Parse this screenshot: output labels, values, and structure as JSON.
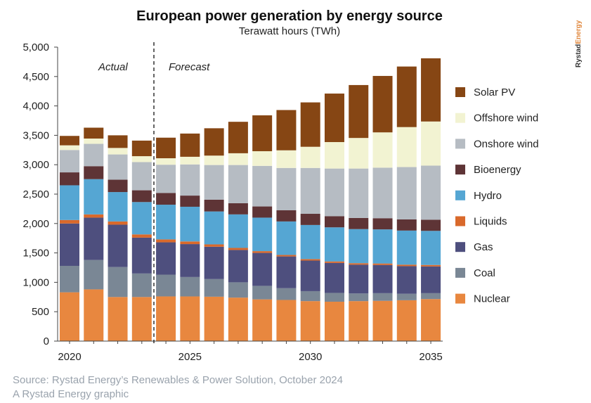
{
  "chart_data": {
    "type": "bar",
    "stacked": true,
    "title": "European power generation by energy source",
    "subtitle": "Terawatt hours (TWh)",
    "ylim": [
      0,
      5000
    ],
    "yticks": [
      0,
      500,
      1000,
      1500,
      2000,
      2500,
      3000,
      3500,
      4000,
      4500,
      5000
    ],
    "ytick_labels": [
      "0",
      "500",
      "1,000",
      "1,500",
      "2,000",
      "2,500",
      "3,000",
      "3,500",
      "4,000",
      "4,500",
      "5,000"
    ],
    "x": [
      2020,
      2021,
      2022,
      2023,
      2024,
      2025,
      2026,
      2027,
      2028,
      2029,
      2030,
      2031,
      2032,
      2033,
      2034,
      2035
    ],
    "xtick_values": [
      2020,
      2025,
      2030,
      2035
    ],
    "xtick_labels": [
      "2020",
      "2025",
      "2030",
      "2035"
    ],
    "period_split": 2023.5,
    "period_labels": {
      "actual": "Actual",
      "forecast": "Forecast"
    },
    "grid": false,
    "legend_position": "right",
    "series": [
      {
        "name": "Nuclear",
        "color": "#e8873f",
        "values": [
          830,
          880,
          750,
          750,
          760,
          760,
          755,
          740,
          710,
          700,
          680,
          670,
          680,
          685,
          695,
          715
        ]
      },
      {
        "name": "Coal",
        "color": "#7a8795",
        "values": [
          450,
          500,
          510,
          400,
          370,
          330,
          300,
          260,
          230,
          200,
          170,
          150,
          130,
          130,
          110,
          100
        ]
      },
      {
        "name": "Gas",
        "color": "#4e4f7e",
        "values": [
          720,
          720,
          720,
          610,
          550,
          560,
          550,
          550,
          560,
          540,
          520,
          510,
          490,
          480,
          470,
          455
        ]
      },
      {
        "name": "Liquids",
        "color": "#d9692b",
        "values": [
          60,
          55,
          55,
          55,
          50,
          45,
          40,
          35,
          30,
          25,
          25,
          25,
          25,
          25,
          25,
          25
        ]
      },
      {
        "name": "Hydro",
        "color": "#55a6d3",
        "values": [
          590,
          600,
          500,
          550,
          590,
          590,
          560,
          570,
          570,
          570,
          580,
          580,
          580,
          580,
          580,
          580
        ]
      },
      {
        "name": "Bioenergy",
        "color": "#5e3436",
        "values": [
          220,
          220,
          210,
          200,
          200,
          190,
          200,
          190,
          190,
          190,
          190,
          190,
          190,
          190,
          190,
          190
        ]
      },
      {
        "name": "Onshore wind",
        "color": "#b6bcc3",
        "values": [
          380,
          380,
          430,
          480,
          480,
          530,
          590,
          650,
          690,
          720,
          780,
          810,
          840,
          860,
          890,
          920
        ]
      },
      {
        "name": "Offshore wind",
        "color": "#f2f3d2",
        "values": [
          80,
          90,
          110,
          100,
          110,
          130,
          160,
          200,
          250,
          300,
          360,
          450,
          520,
          600,
          680,
          750
        ]
      },
      {
        "name": "Solar PV",
        "color": "#864614",
        "values": [
          160,
          185,
          215,
          265,
          350,
          395,
          465,
          535,
          610,
          685,
          755,
          825,
          900,
          960,
          1030,
          1075
        ]
      }
    ],
    "legend_order": [
      "Solar PV",
      "Offshore wind",
      "Onshore wind",
      "Bioenergy",
      "Hydro",
      "Liquids",
      "Gas",
      "Coal",
      "Nuclear"
    ]
  },
  "brand": {
    "name_dark": "Rystad",
    "name_accent": "Energy"
  },
  "footer": {
    "source": "Source: Rystad Energy’s Renewables & Power Solution, October 2024",
    "credit": "A Rystad Energy graphic"
  }
}
